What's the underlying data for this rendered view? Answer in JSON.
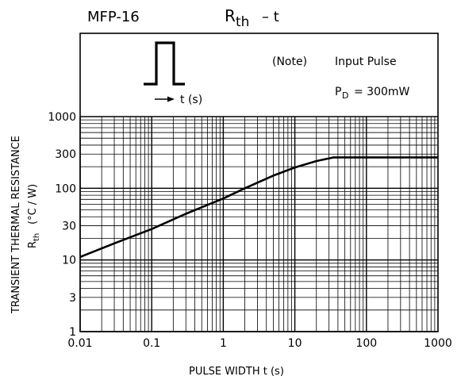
{
  "header": {
    "package": "MFP-16",
    "title_main": "R",
    "title_sub": "th",
    "title_rest": "–  t"
  },
  "note": {
    "label": "(Note)",
    "pulse_label": "Input Pulse",
    "pd_main": "P",
    "pd_sub": "D",
    "pd_value": "= 300mW",
    "t_label": "t (s)"
  },
  "chart_data": {
    "type": "line",
    "title": "Rth – t",
    "xlabel": "PULSE WIDTH   t    (s)",
    "ylabel_line1": "TRANSIENT THERMAL RESISTANCE",
    "ylabel_line2_main": "R",
    "ylabel_line2_sub": "th",
    "ylabel_line2_unit": "(°C / W)",
    "x_scale": "log",
    "y_scale": "log",
    "xlim": [
      0.01,
      1000
    ],
    "ylim": [
      1,
      1000
    ],
    "x_ticks": [
      {
        "value": 0.01,
        "label": "0.01"
      },
      {
        "value": 0.1,
        "label": "0.1"
      },
      {
        "value": 1,
        "label": "1"
      },
      {
        "value": 10,
        "label": "10"
      },
      {
        "value": 100,
        "label": "100"
      },
      {
        "value": 1000,
        "label": "1000"
      }
    ],
    "y_ticks": [
      {
        "value": 1,
        "label": "1"
      },
      {
        "value": 3,
        "label": "3"
      },
      {
        "value": 10,
        "label": "10"
      },
      {
        "value": 30,
        "label": "30"
      },
      {
        "value": 100,
        "label": "100"
      },
      {
        "value": 300,
        "label": "300"
      },
      {
        "value": 1000,
        "label": "1000"
      }
    ],
    "grid": true,
    "series": [
      {
        "x": [
          0.01,
          0.03,
          0.1,
          0.3,
          1,
          2,
          5,
          10,
          20,
          35,
          100,
          1000
        ],
        "y": [
          11,
          17,
          27,
          44,
          72,
          100,
          150,
          195,
          240,
          270,
          270,
          270
        ]
      }
    ]
  }
}
